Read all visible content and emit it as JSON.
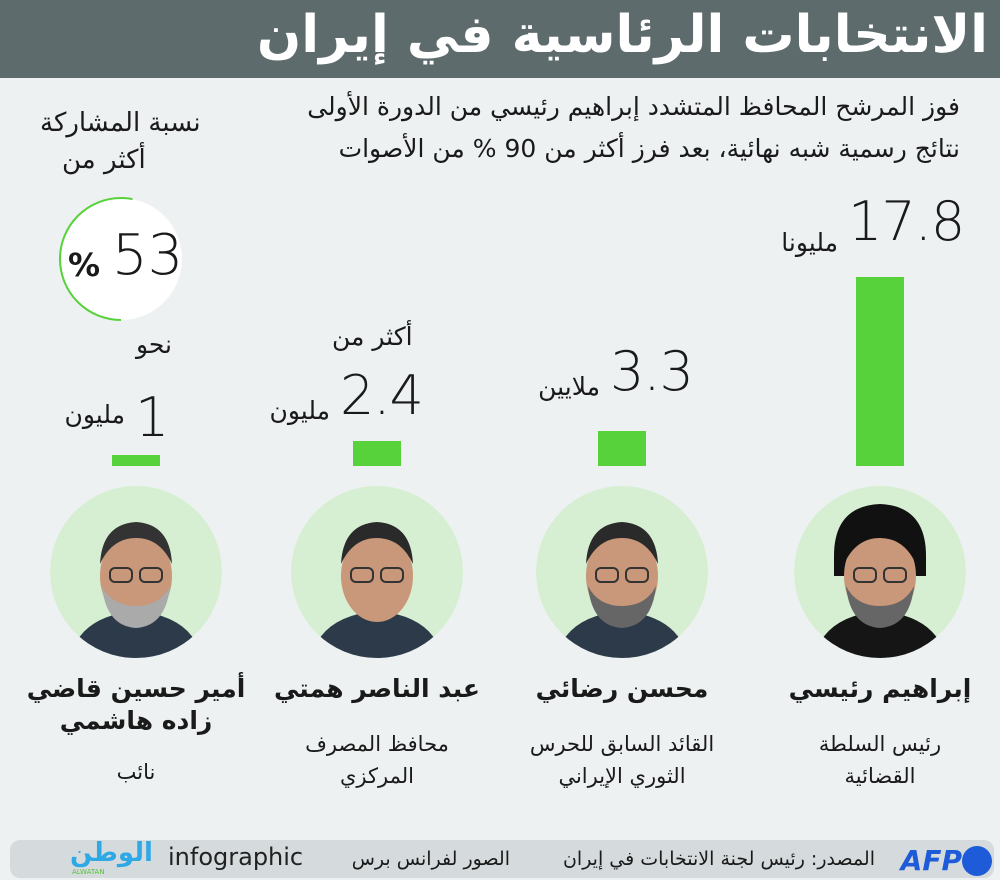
{
  "header": {
    "title": "الانتخابات الرئاسية في إيران"
  },
  "subtitle": {
    "line1": "فوز المرشح المحافظ المتشدد إبراهيم رئيسي من الدورة الأولى",
    "line2": "نتائج رسمية شبه نهائية، بعد فرز أكثر من 90 % من الأصوات"
  },
  "participation": {
    "label1": "نسبة المشاركة",
    "label2": "أكثر من",
    "value": "53",
    "percent_sign": "%",
    "fraction": 0.53
  },
  "chart_data": {
    "type": "bar",
    "title": "الانتخابات الرئاسية في إيران",
    "unit": "million votes",
    "categories": [
      "إبراهيم رئيسي",
      "محسن رضائي",
      "عبد الناصر همتي",
      "أمير حسين قاضي زاده هاشمي"
    ],
    "values": [
      17.8,
      3.3,
      2.4,
      1
    ],
    "ylim": [
      0,
      17.8
    ]
  },
  "candidates": [
    {
      "name": "إبراهيم رئيسي",
      "desc1": "رئيس السلطة",
      "desc2": "القضائية",
      "value_label": "17.8",
      "unit": "مليونا",
      "prefix": ""
    },
    {
      "name": "محسن رضائي",
      "desc1": "القائد السابق للحرس",
      "desc2": "الثوري الإيراني",
      "value_label": "3.3",
      "unit": "ملايين",
      "prefix": ""
    },
    {
      "name": "عبد الناصر همتي",
      "desc1": "محافظ المصرف",
      "desc2": "المركزي",
      "value_label": "2.4",
      "unit": "مليون",
      "prefix": "أكثر من"
    },
    {
      "name": "أمير حسين قاضي",
      "name2": "زاده هاشمي",
      "desc1": "نائب",
      "desc2": "",
      "value_label": "1",
      "unit": "مليون",
      "prefix": "نحو"
    }
  ],
  "footer": {
    "source": "المصدر: رئيس لجنة الانتخابات في إيران",
    "photos": "الصور لفرانس برس",
    "brand": "infographic",
    "logo": "الوطن",
    "logo_en": "ALWATAN",
    "afp": "AFP"
  },
  "colors": {
    "bar": "#57d23a",
    "header": "#5d6b6c",
    "avatar_bg": "#d6efd2"
  }
}
